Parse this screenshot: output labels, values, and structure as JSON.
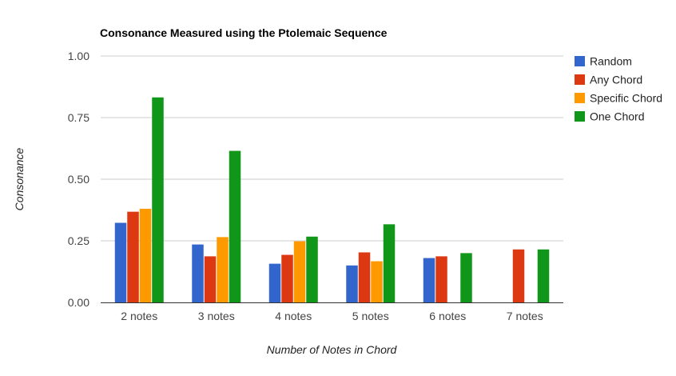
{
  "chart_data": {
    "type": "bar",
    "title": "Consonance Measured using the Ptolemaic Sequence",
    "xlabel": "Number of Notes in Chord",
    "ylabel": "Consonance",
    "categories": [
      "2 notes",
      "3 notes",
      "4 notes",
      "5 notes",
      "6 notes",
      "7 notes"
    ],
    "ylim": [
      0,
      1
    ],
    "yticks": [
      "0.00",
      "0.25",
      "0.50",
      "0.75",
      "1.00"
    ],
    "ytick_values": [
      0,
      0.25,
      0.5,
      0.75,
      1.0
    ],
    "grid": true,
    "legend_position": "right",
    "series": [
      {
        "name": "Random",
        "color": "#3366cc",
        "values": [
          0.323,
          0.235,
          0.157,
          0.15,
          0.18,
          null
        ]
      },
      {
        "name": "Any Chord",
        "color": "#dc3912",
        "values": [
          0.368,
          0.187,
          0.193,
          0.203,
          0.187,
          0.215
        ]
      },
      {
        "name": "Specific Chord",
        "color": "#ff9900",
        "values": [
          0.38,
          0.265,
          0.248,
          0.167,
          null,
          null
        ]
      },
      {
        "name": "One Chord",
        "color": "#109618",
        "values": [
          0.832,
          0.615,
          0.267,
          0.317,
          0.2,
          0.215
        ]
      }
    ]
  }
}
